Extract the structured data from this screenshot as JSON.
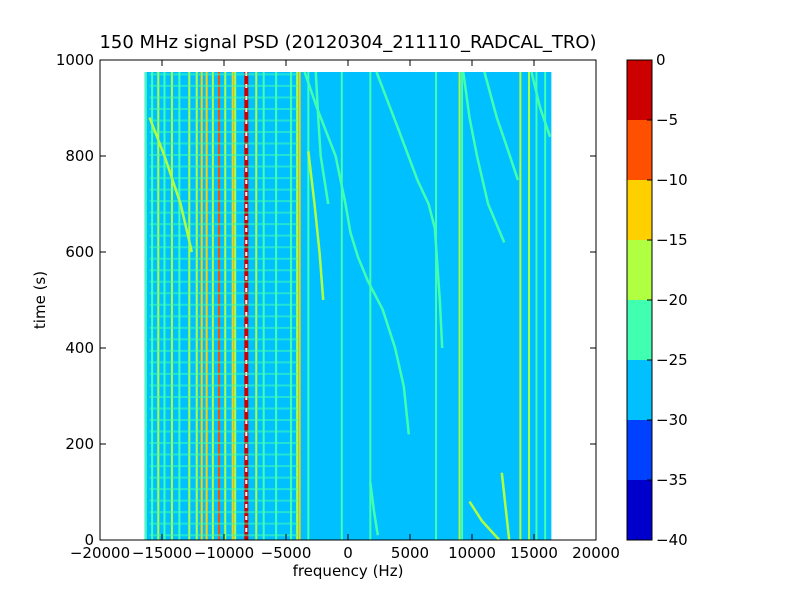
{
  "chart_data": {
    "type": "heatmap",
    "title": "150 MHz signal PSD (20120304_211110_RADCAL_TRO)",
    "xlabel": "frequency (Hz)",
    "ylabel": "time (s)",
    "xlim": [
      -20000,
      20000
    ],
    "ylim": [
      0,
      1000
    ],
    "x_ticks": [
      -20000,
      -15000,
      -10000,
      -5000,
      0,
      5000,
      10000,
      15000,
      20000
    ],
    "x_tick_labels": [
      "−20000",
      "−15000",
      "−10000",
      "−5000",
      "0",
      "5000",
      "10000",
      "15000",
      "20000"
    ],
    "y_ticks": [
      0,
      200,
      400,
      600,
      800,
      1000
    ],
    "y_tick_labels": [
      "0",
      "200",
      "400",
      "600",
      "800",
      "1000"
    ],
    "data_extent": {
      "x": [
        -16400,
        16400
      ],
      "y": [
        0,
        975
      ]
    },
    "background_level": -27.5,
    "colorbar": {
      "levels": [
        -40,
        -35,
        -30,
        -25,
        -20,
        -15,
        -10,
        -5,
        0
      ],
      "tick_labels": [
        "−40",
        "−35",
        "−30",
        "−25",
        "−20",
        "−15",
        "−10",
        "−5",
        "0"
      ],
      "colors": [
        "#0000cd",
        "#0040ff",
        "#00c0ff",
        "#40ffb0",
        "#b0ff40",
        "#ffd000",
        "#ff5000",
        "#cd0000"
      ]
    },
    "vertical_lines": [
      {
        "x": -16300,
        "level": -22
      },
      {
        "x": -15800,
        "level": -22
      },
      {
        "x": -15300,
        "level": -17
      },
      {
        "x": -14800,
        "level": -22
      },
      {
        "x": -14200,
        "level": -17
      },
      {
        "x": -13600,
        "level": -22
      },
      {
        "x": -12800,
        "level": -17
      },
      {
        "x": -12200,
        "level": -17
      },
      {
        "x": -11800,
        "level": -12
      },
      {
        "x": -11400,
        "level": -12
      },
      {
        "x": -10900,
        "level": -17
      },
      {
        "x": -10400,
        "level": -7
      },
      {
        "x": -9900,
        "level": -17
      },
      {
        "x": -9300,
        "level": -12
      },
      {
        "x": -9100,
        "level": -17
      },
      {
        "x": -8200,
        "level": -2
      },
      {
        "x": -7400,
        "level": -17
      },
      {
        "x": -6800,
        "level": -22
      },
      {
        "x": -5800,
        "level": -22
      },
      {
        "x": -4600,
        "level": -22
      },
      {
        "x": -4100,
        "level": -17
      },
      {
        "x": -3900,
        "level": -12
      },
      {
        "x": -3200,
        "level": -22
      },
      {
        "x": -500,
        "level": -22
      },
      {
        "x": 1800,
        "level": -22
      },
      {
        "x": 7100,
        "level": -22
      },
      {
        "x": 9000,
        "level": -17
      },
      {
        "x": 9200,
        "level": -22
      },
      {
        "x": 13900,
        "level": -17
      },
      {
        "x": 14600,
        "level": -17
      },
      {
        "x": 15200,
        "level": -22
      },
      {
        "x": 15900,
        "level": -22
      }
    ],
    "traces": [
      {
        "level": -17,
        "points": [
          [
            -16000,
            880
          ],
          [
            -14800,
            800
          ],
          [
            -13500,
            700
          ],
          [
            -12600,
            600
          ]
        ]
      },
      {
        "level": -22,
        "points": [
          [
            -3500,
            975
          ],
          [
            -2500,
            900
          ],
          [
            -1000,
            800
          ],
          [
            -200,
            700
          ],
          [
            200,
            640
          ],
          [
            800,
            590
          ],
          [
            1600,
            540
          ],
          [
            2800,
            480
          ],
          [
            3800,
            400
          ],
          [
            4500,
            320
          ],
          [
            4900,
            220
          ]
        ]
      },
      {
        "level": -17,
        "points": [
          [
            -3200,
            810
          ],
          [
            -2700,
            700
          ],
          [
            -2300,
            600
          ],
          [
            -2000,
            500
          ]
        ]
      },
      {
        "level": -22,
        "points": [
          [
            2300,
            975
          ],
          [
            4000,
            860
          ],
          [
            5600,
            750
          ],
          [
            6500,
            700
          ],
          [
            7000,
            650
          ],
          [
            7400,
            500
          ],
          [
            7600,
            400
          ]
        ]
      },
      {
        "level": -22,
        "points": [
          [
            -2600,
            975
          ],
          [
            -2400,
            880
          ],
          [
            -2200,
            800
          ],
          [
            -1600,
            700
          ]
        ]
      },
      {
        "level": -22,
        "points": [
          [
            9300,
            975
          ],
          [
            9800,
            880
          ],
          [
            10400,
            800
          ],
          [
            11300,
            700
          ],
          [
            12600,
            620
          ]
        ]
      },
      {
        "level": -22,
        "points": [
          [
            11000,
            975
          ],
          [
            12000,
            880
          ],
          [
            12800,
            820
          ],
          [
            13700,
            750
          ]
        ]
      },
      {
        "level": -22,
        "points": [
          [
            14800,
            975
          ],
          [
            15500,
            900
          ],
          [
            16300,
            840
          ]
        ]
      },
      {
        "level": -22,
        "points": [
          [
            1800,
            120
          ],
          [
            2100,
            60
          ],
          [
            2400,
            10
          ]
        ]
      },
      {
        "level": -17,
        "points": [
          [
            9800,
            80
          ],
          [
            10800,
            40
          ],
          [
            12200,
            0
          ]
        ]
      },
      {
        "level": -17,
        "points": [
          [
            12400,
            140
          ],
          [
            12700,
            70
          ],
          [
            13000,
            0
          ]
        ]
      }
    ]
  }
}
